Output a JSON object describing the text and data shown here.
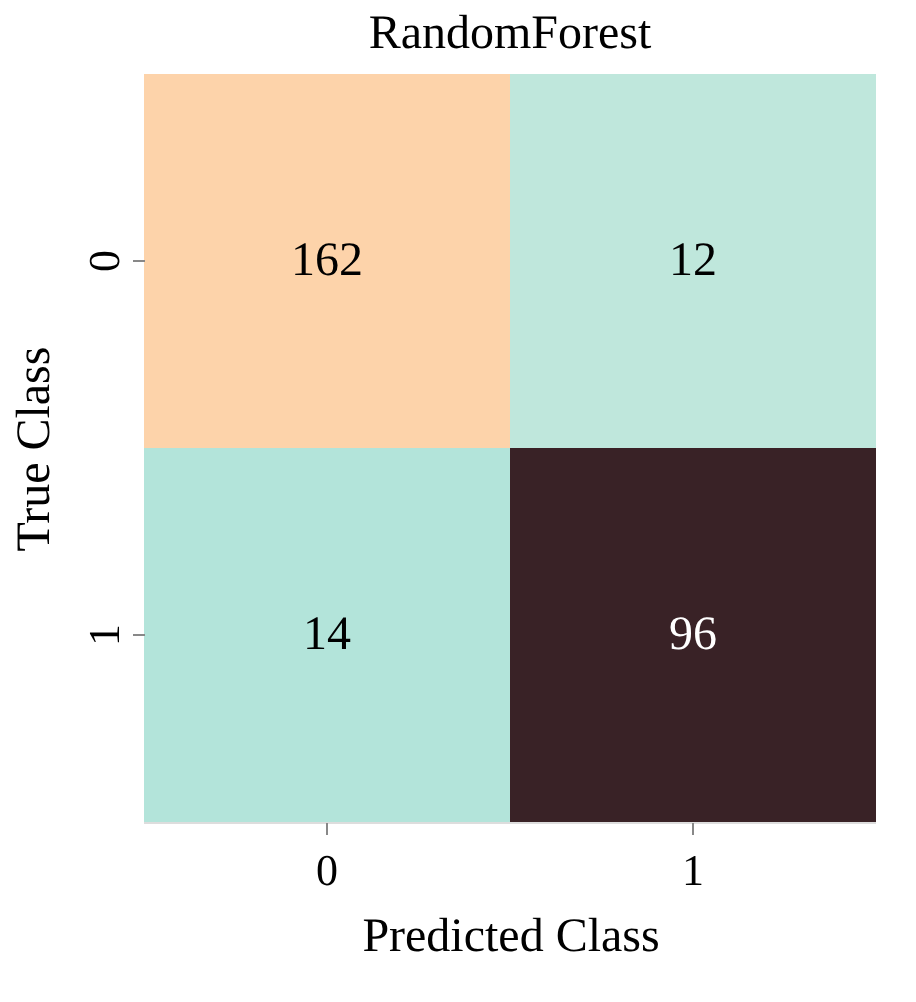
{
  "chart_data": {
    "type": "heatmap",
    "title": "RandomForest",
    "xlabel": "Predicted Class",
    "ylabel": "True Class",
    "categories": [
      "0",
      "1"
    ],
    "y_categories": [
      "0",
      "1"
    ],
    "cells": [
      [
        162,
        12
      ],
      [
        14,
        96
      ]
    ],
    "colors": [
      [
        "#fdd3aa",
        "#bfe7dc"
      ],
      [
        "#b3e4da",
        "#392226"
      ]
    ],
    "data_labels": true,
    "legend": false,
    "grid": false
  }
}
